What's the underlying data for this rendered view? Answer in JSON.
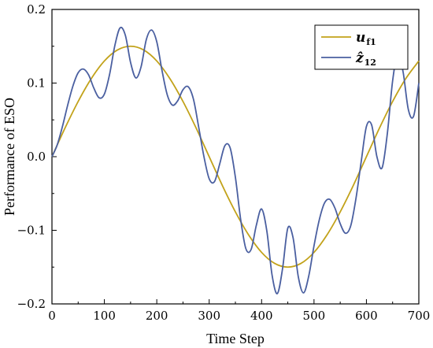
{
  "chart_data": {
    "type": "line",
    "title": "",
    "xlabel": "Time Step",
    "ylabel": "Performance of ESO",
    "xlim": [
      0,
      700
    ],
    "ylim": [
      -0.2,
      0.2
    ],
    "x_ticks": [
      0,
      100,
      200,
      300,
      400,
      500,
      600,
      700
    ],
    "x_tick_labels": [
      "0",
      "100",
      "200",
      "300",
      "400",
      "500",
      "600",
      "700"
    ],
    "y_ticks": [
      -0.2,
      -0.1,
      0.0,
      0.1,
      0.2
    ],
    "y_tick_labels": [
      "−0.2",
      "−0.1",
      "0.0",
      "0.1",
      "0.2"
    ],
    "grid": false,
    "legend_position": "top-right",
    "series": [
      {
        "name": "u",
        "name_subscript": "f1",
        "color": "#c2a21a",
        "x": [
          0,
          25,
          50,
          75,
          100,
          125,
          150,
          175,
          200,
          225,
          250,
          275,
          300,
          325,
          350,
          375,
          400,
          425,
          450,
          475,
          500,
          525,
          550,
          575,
          600,
          625,
          650,
          675,
          700
        ],
        "y": [
          0.0,
          0.039,
          0.075,
          0.106,
          0.13,
          0.145,
          0.15,
          0.145,
          0.13,
          0.106,
          0.075,
          0.039,
          0.0,
          -0.039,
          -0.075,
          -0.106,
          -0.13,
          -0.145,
          -0.15,
          -0.145,
          -0.13,
          -0.106,
          -0.075,
          -0.039,
          0.0,
          0.039,
          0.075,
          0.106,
          0.13
        ]
      },
      {
        "name": "ẑ",
        "name_subscript": "12",
        "color": "#4a5fa0",
        "x": [
          0,
          10,
          20,
          30,
          40,
          50,
          60,
          70,
          80,
          90,
          100,
          110,
          120,
          130,
          140,
          150,
          160,
          170,
          180,
          190,
          200,
          210,
          220,
          230,
          240,
          250,
          260,
          270,
          280,
          290,
          300,
          310,
          320,
          330,
          340,
          350,
          360,
          370,
          380,
          390,
          400,
          410,
          420,
          430,
          440,
          450,
          460,
          470,
          480,
          490,
          500,
          510,
          520,
          530,
          540,
          550,
          560,
          570,
          580,
          590,
          600,
          610,
          620,
          630,
          640,
          650,
          660,
          670,
          680,
          690,
          700
        ],
        "y": [
          0.0,
          0.016,
          0.041,
          0.07,
          0.096,
          0.114,
          0.119,
          0.111,
          0.093,
          0.08,
          0.085,
          0.112,
          0.151,
          0.175,
          0.165,
          0.128,
          0.107,
          0.122,
          0.159,
          0.172,
          0.156,
          0.117,
          0.084,
          0.07,
          0.076,
          0.091,
          0.095,
          0.078,
          0.04,
          0.0,
          -0.03,
          -0.034,
          -0.01,
          0.015,
          0.012,
          -0.028,
          -0.085,
          -0.125,
          -0.126,
          -0.093,
          -0.071,
          -0.101,
          -0.161,
          -0.186,
          -0.152,
          -0.097,
          -0.11,
          -0.163,
          -0.185,
          -0.162,
          -0.121,
          -0.086,
          -0.063,
          -0.058,
          -0.07,
          -0.091,
          -0.104,
          -0.094,
          -0.057,
          -0.007,
          0.041,
          0.043,
          0.0,
          -0.015,
          0.032,
          0.103,
          0.141,
          0.115,
          0.064,
          0.055,
          0.1
        ]
      }
    ]
  }
}
